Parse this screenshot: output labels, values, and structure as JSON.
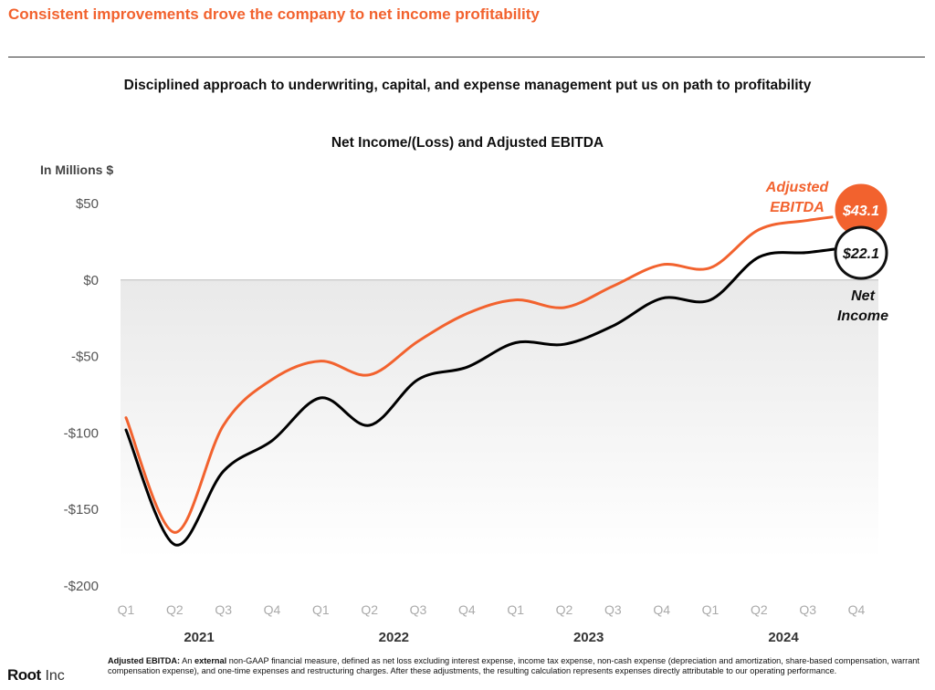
{
  "headline": "Consistent improvements drove the company to net income profitability",
  "subheadline": "Disciplined approach to underwriting, capital, and expense management put us on path to profitability",
  "chart_data": {
    "type": "line",
    "title": "Net Income/(Loss) and Adjusted EBITDA",
    "ylabel": "In Millions $",
    "ylim": [
      -200,
      50
    ],
    "y_ticks": [
      50,
      0,
      -50,
      -100,
      -150,
      -200
    ],
    "y_tick_labels": [
      "$50",
      "$0",
      "-$50",
      "-$100",
      "-$150",
      "-$200"
    ],
    "categories": [
      "Q1",
      "Q2",
      "Q3",
      "Q4",
      "Q1",
      "Q2",
      "Q3",
      "Q4",
      "Q1",
      "Q2",
      "Q3",
      "Q4",
      "Q1",
      "Q2",
      "Q3",
      "Q4"
    ],
    "years": [
      "2021",
      "2022",
      "2023",
      "2024"
    ],
    "series": [
      {
        "name": "Adjusted EBITDA",
        "label_lines": [
          "Adjusted",
          "EBITDA"
        ],
        "color": "#f2622e",
        "values": [
          -90,
          -165,
          -95,
          -65,
          -53,
          -62,
          -40,
          -22,
          -13,
          -18,
          -4,
          10,
          8,
          33,
          39,
          43.1
        ],
        "end_label": "$43.1"
      },
      {
        "name": "Net Income",
        "label_lines": [
          "Net",
          "Income"
        ],
        "color": "#000000",
        "values": [
          -98,
          -173,
          -125,
          -105,
          -77,
          -95,
          -65,
          -57,
          -41,
          -42,
          -30,
          -12,
          -13,
          15,
          18,
          22.1
        ],
        "end_label": "$22.1"
      }
    ],
    "grid": false
  },
  "footnote": {
    "term": "Adjusted EBITDA:",
    "text_pre": " An ",
    "emphasis": "external",
    "text_post": " non-GAAP financial measure, defined as net loss excluding interest expense, income tax expense, non-cash expense (depreciation and amortization, share-based compensation, warrant compensation expense), and one-time expenses and restructuring charges. After these adjustments, the resulting calculation represents expenses directly attributable to our operating performance."
  },
  "logo": {
    "name": "Root",
    "suffix": "Inc"
  }
}
